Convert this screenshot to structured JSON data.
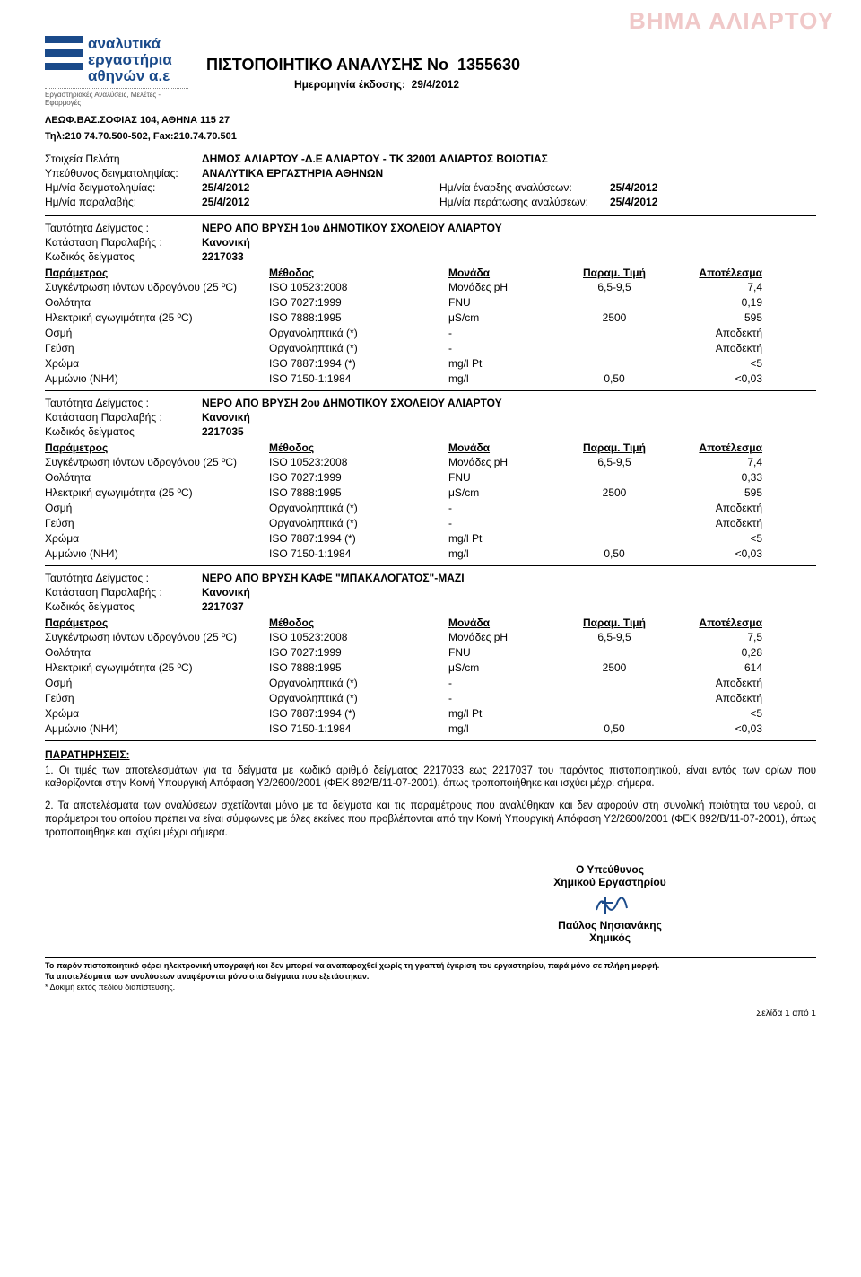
{
  "watermark": "ΒΗΜΑ ΑΛΙΑΡΤΟΥ",
  "logo": {
    "line1": "αναλυτικά",
    "line2": "εργαστήρια",
    "line3": "αθηνών α.ε",
    "sub": "Εργαστηριακές Αναλύσεις, Μελέτες - Εφαρμογές",
    "colors": [
      "#1a4a8a",
      "#ffffff",
      "#1a4a8a",
      "#ffffff",
      "#1a4a8a"
    ]
  },
  "title": {
    "label": "ΠΙΣΤΟΠΟΙΗΤΙΚΟ ΑΝΑΛΥΣΗΣ Νο",
    "number": "1355630"
  },
  "issue": {
    "label": "Ημερομηνία έκδοσης:",
    "date": "29/4/2012"
  },
  "address": {
    "line1": "ΛΕΩΦ.ΒΑΣ.ΣΟΦΙΑΣ 104, ΑΘΗΝΑ 115 27",
    "line2": "Τηλ:210 74.70.500-502, Fax:210.74.70.501"
  },
  "client": {
    "client_label": "Στοιχεία Πελάτη",
    "client_value": "ΔΗΜΟΣ ΑΛΙΑΡΤΟΥ -Δ.Ε ΑΛΙΑΡΤΟΥ - ΤΚ 32001 ΑΛΙΑΡΤΟΣ ΒΟΙΩΤΙΑΣ",
    "sampler_label": "Υπεύθυνος δειγματοληψίας:",
    "sampler_value": "ΑΝΑΛΥΤΙΚΑ ΕΡΓΑΣΤΗΡΙΑ ΑΘΗΝΩΝ"
  },
  "dates": {
    "sampling_label": "Ημ/νία δειγματοληψίας:",
    "sampling_value": "25/4/2012",
    "receipt_label": "Ημ/νία παραλαβής:",
    "receipt_value": "25/4/2012",
    "start_label": "Ημ/νία έναρξης αναλύσεων:",
    "start_value": "25/4/2012",
    "end_label": "Ημ/νία περάτωσης αναλύσεων:",
    "end_value": "25/4/2012"
  },
  "meta_labels": {
    "identity": "Ταυτότητα Δείγματος :",
    "condition": "Κατάσταση Παραλαβής :",
    "code": "Κωδικός δείγματος"
  },
  "headers": {
    "param": "Παράμετρος",
    "method": "Μέθοδος",
    "unit": "Μονάδα",
    "limit": "Παραμ. Τιμή",
    "result": "Αποτέλεσμα"
  },
  "samples": [
    {
      "identity": "ΝΕΡΟ ΑΠΟ ΒΡΥΣΗ 1ου ΔΗΜΟΤΙΚΟΥ ΣΧΟΛΕΙΟΥ ΑΛΙΑΡΤΟΥ",
      "condition": "Κανονική",
      "code": "2217033",
      "rows": [
        {
          "param": "Συγκέντρωση ιόντων υδρογόνου (25 ºC)",
          "method": "ISO 10523:2008",
          "unit": "Μονάδες pH",
          "limit": "6,5-9,5",
          "result": "7,4"
        },
        {
          "param": "Θολότητα",
          "method": "ISO 7027:1999",
          "unit": "FNU",
          "limit": "",
          "result": "0,19"
        },
        {
          "param": "Ηλεκτρική αγωγιμότητα (25 ºC)",
          "method": "ISO 7888:1995",
          "unit": "μS/cm",
          "limit": "2500",
          "result": "595"
        },
        {
          "param": "Οσμή",
          "method": "Οργανοληπτικά (*)",
          "unit": "-",
          "limit": "",
          "result": "Αποδεκτή"
        },
        {
          "param": "Γεύση",
          "method": "Οργανοληπτικά (*)",
          "unit": "-",
          "limit": "",
          "result": "Αποδεκτή"
        },
        {
          "param": "Χρώμα",
          "method": "ISO 7887:1994 (*)",
          "unit": "mg/l Pt",
          "limit": "",
          "result": "<5"
        },
        {
          "param": "Αμμώνιο (NH4)",
          "method": "ISO 7150-1:1984",
          "unit": "mg/l",
          "limit": "0,50",
          "result": "<0,03"
        }
      ]
    },
    {
      "identity": "ΝΕΡΟ ΑΠΟ ΒΡΥΣΗ 2ου ΔΗΜΟΤΙΚΟΥ ΣΧΟΛΕΙΟΥ ΑΛΙΑΡΤΟΥ",
      "condition": "Κανονική",
      "code": "2217035",
      "rows": [
        {
          "param": "Συγκέντρωση ιόντων υδρογόνου (25 ºC)",
          "method": "ISO 10523:2008",
          "unit": "Μονάδες pH",
          "limit": "6,5-9,5",
          "result": "7,4"
        },
        {
          "param": "Θολότητα",
          "method": "ISO 7027:1999",
          "unit": "FNU",
          "limit": "",
          "result": "0,33"
        },
        {
          "param": "Ηλεκτρική αγωγιμότητα (25 ºC)",
          "method": "ISO 7888:1995",
          "unit": "μS/cm",
          "limit": "2500",
          "result": "595"
        },
        {
          "param": "Οσμή",
          "method": "Οργανοληπτικά (*)",
          "unit": "-",
          "limit": "",
          "result": "Αποδεκτή"
        },
        {
          "param": "Γεύση",
          "method": "Οργανοληπτικά (*)",
          "unit": "-",
          "limit": "",
          "result": "Αποδεκτή"
        },
        {
          "param": "Χρώμα",
          "method": "ISO 7887:1994 (*)",
          "unit": "mg/l Pt",
          "limit": "",
          "result": "<5"
        },
        {
          "param": "Αμμώνιο (NH4)",
          "method": "ISO 7150-1:1984",
          "unit": "mg/l",
          "limit": "0,50",
          "result": "<0,03"
        }
      ]
    },
    {
      "identity": "ΝΕΡΟ ΑΠΟ ΒΡΥΣΗ ΚΑΦΕ \"ΜΠΑΚΑΛΟΓΑΤΟΣ\"-ΜΑΖΙ",
      "condition": "Κανονική",
      "code": "2217037",
      "rows": [
        {
          "param": "Συγκέντρωση ιόντων υδρογόνου (25 ºC)",
          "method": "ISO 10523:2008",
          "unit": "Μονάδες pH",
          "limit": "6,5-9,5",
          "result": "7,5"
        },
        {
          "param": "Θολότητα",
          "method": "ISO 7027:1999",
          "unit": "FNU",
          "limit": "",
          "result": "0,28"
        },
        {
          "param": "Ηλεκτρική αγωγιμότητα (25 ºC)",
          "method": "ISO 7888:1995",
          "unit": "μS/cm",
          "limit": "2500",
          "result": "614"
        },
        {
          "param": "Οσμή",
          "method": "Οργανοληπτικά (*)",
          "unit": "-",
          "limit": "",
          "result": "Αποδεκτή"
        },
        {
          "param": "Γεύση",
          "method": "Οργανοληπτικά (*)",
          "unit": "-",
          "limit": "",
          "result": "Αποδεκτή"
        },
        {
          "param": "Χρώμα",
          "method": "ISO 7887:1994 (*)",
          "unit": "mg/l Pt",
          "limit": "",
          "result": "<5"
        },
        {
          "param": "Αμμώνιο (NH4)",
          "method": "ISO 7150-1:1984",
          "unit": "mg/l",
          "limit": "0,50",
          "result": "<0,03"
        }
      ]
    }
  ],
  "notes": {
    "title": "ΠΑΡΑΤΗΡΗΣΕΙΣ:",
    "p1": "1. Οι τιμές των αποτελεσμάτων για τα δείγματα με κωδικό αριθμό δείγματος 2217033 εως 2217037 του παρόντος πιστοποιητικού, είναι εντός των ορίων που καθορίζονται στην Κοινή Υπουργική Απόφαση Υ2/2600/2001 (ΦΕΚ 892/Β/11-07-2001), όπως τροποποιήθηκε και ισχύει μέχρι σήμερα.",
    "p2": "2. Τα αποτελέσματα των αναλύσεων σχετίζονται μόνο με τα δείγματα και τις παραμέτρους που αναλύθηκαν και δεν αφορούν στη συνολική ποιότητα του νερού, οι παράμετροι του οποίου πρέπει να είναι σύμφωνες με όλες εκείνες που προβλέπονται από την Κοινή Υπουργική Απόφαση Υ2/2600/2001 (ΦΕΚ 892/Β/11-07-2001), όπως τροποποιήθηκε και ισχύει μέχρι σήμερα."
  },
  "signature": {
    "role1": "Ο Υπεύθυνος",
    "role2": "Χημικού Εργαστηρίου",
    "name": "Παύλος Νησιανάκης",
    "title": "Χημικός"
  },
  "footer": {
    "l1": "Το παρόν πιστοποιητικό φέρει ηλεκτρονική υπογραφή και δεν μπορεί να αναπαραχθεί χωρίς τη γραπτή έγκριση του εργαστηρίου, παρά μόνο σε πλήρη μορφή.",
    "l2": "Τα αποτελέσματα των αναλύσεων αναφέρονται μόνο στα δείγματα που εξετάστηκαν.",
    "l3": "* Δοκιμή εκτός πεδίου διαπίστευσης."
  },
  "page_num": "Σελίδα 1 από 1"
}
